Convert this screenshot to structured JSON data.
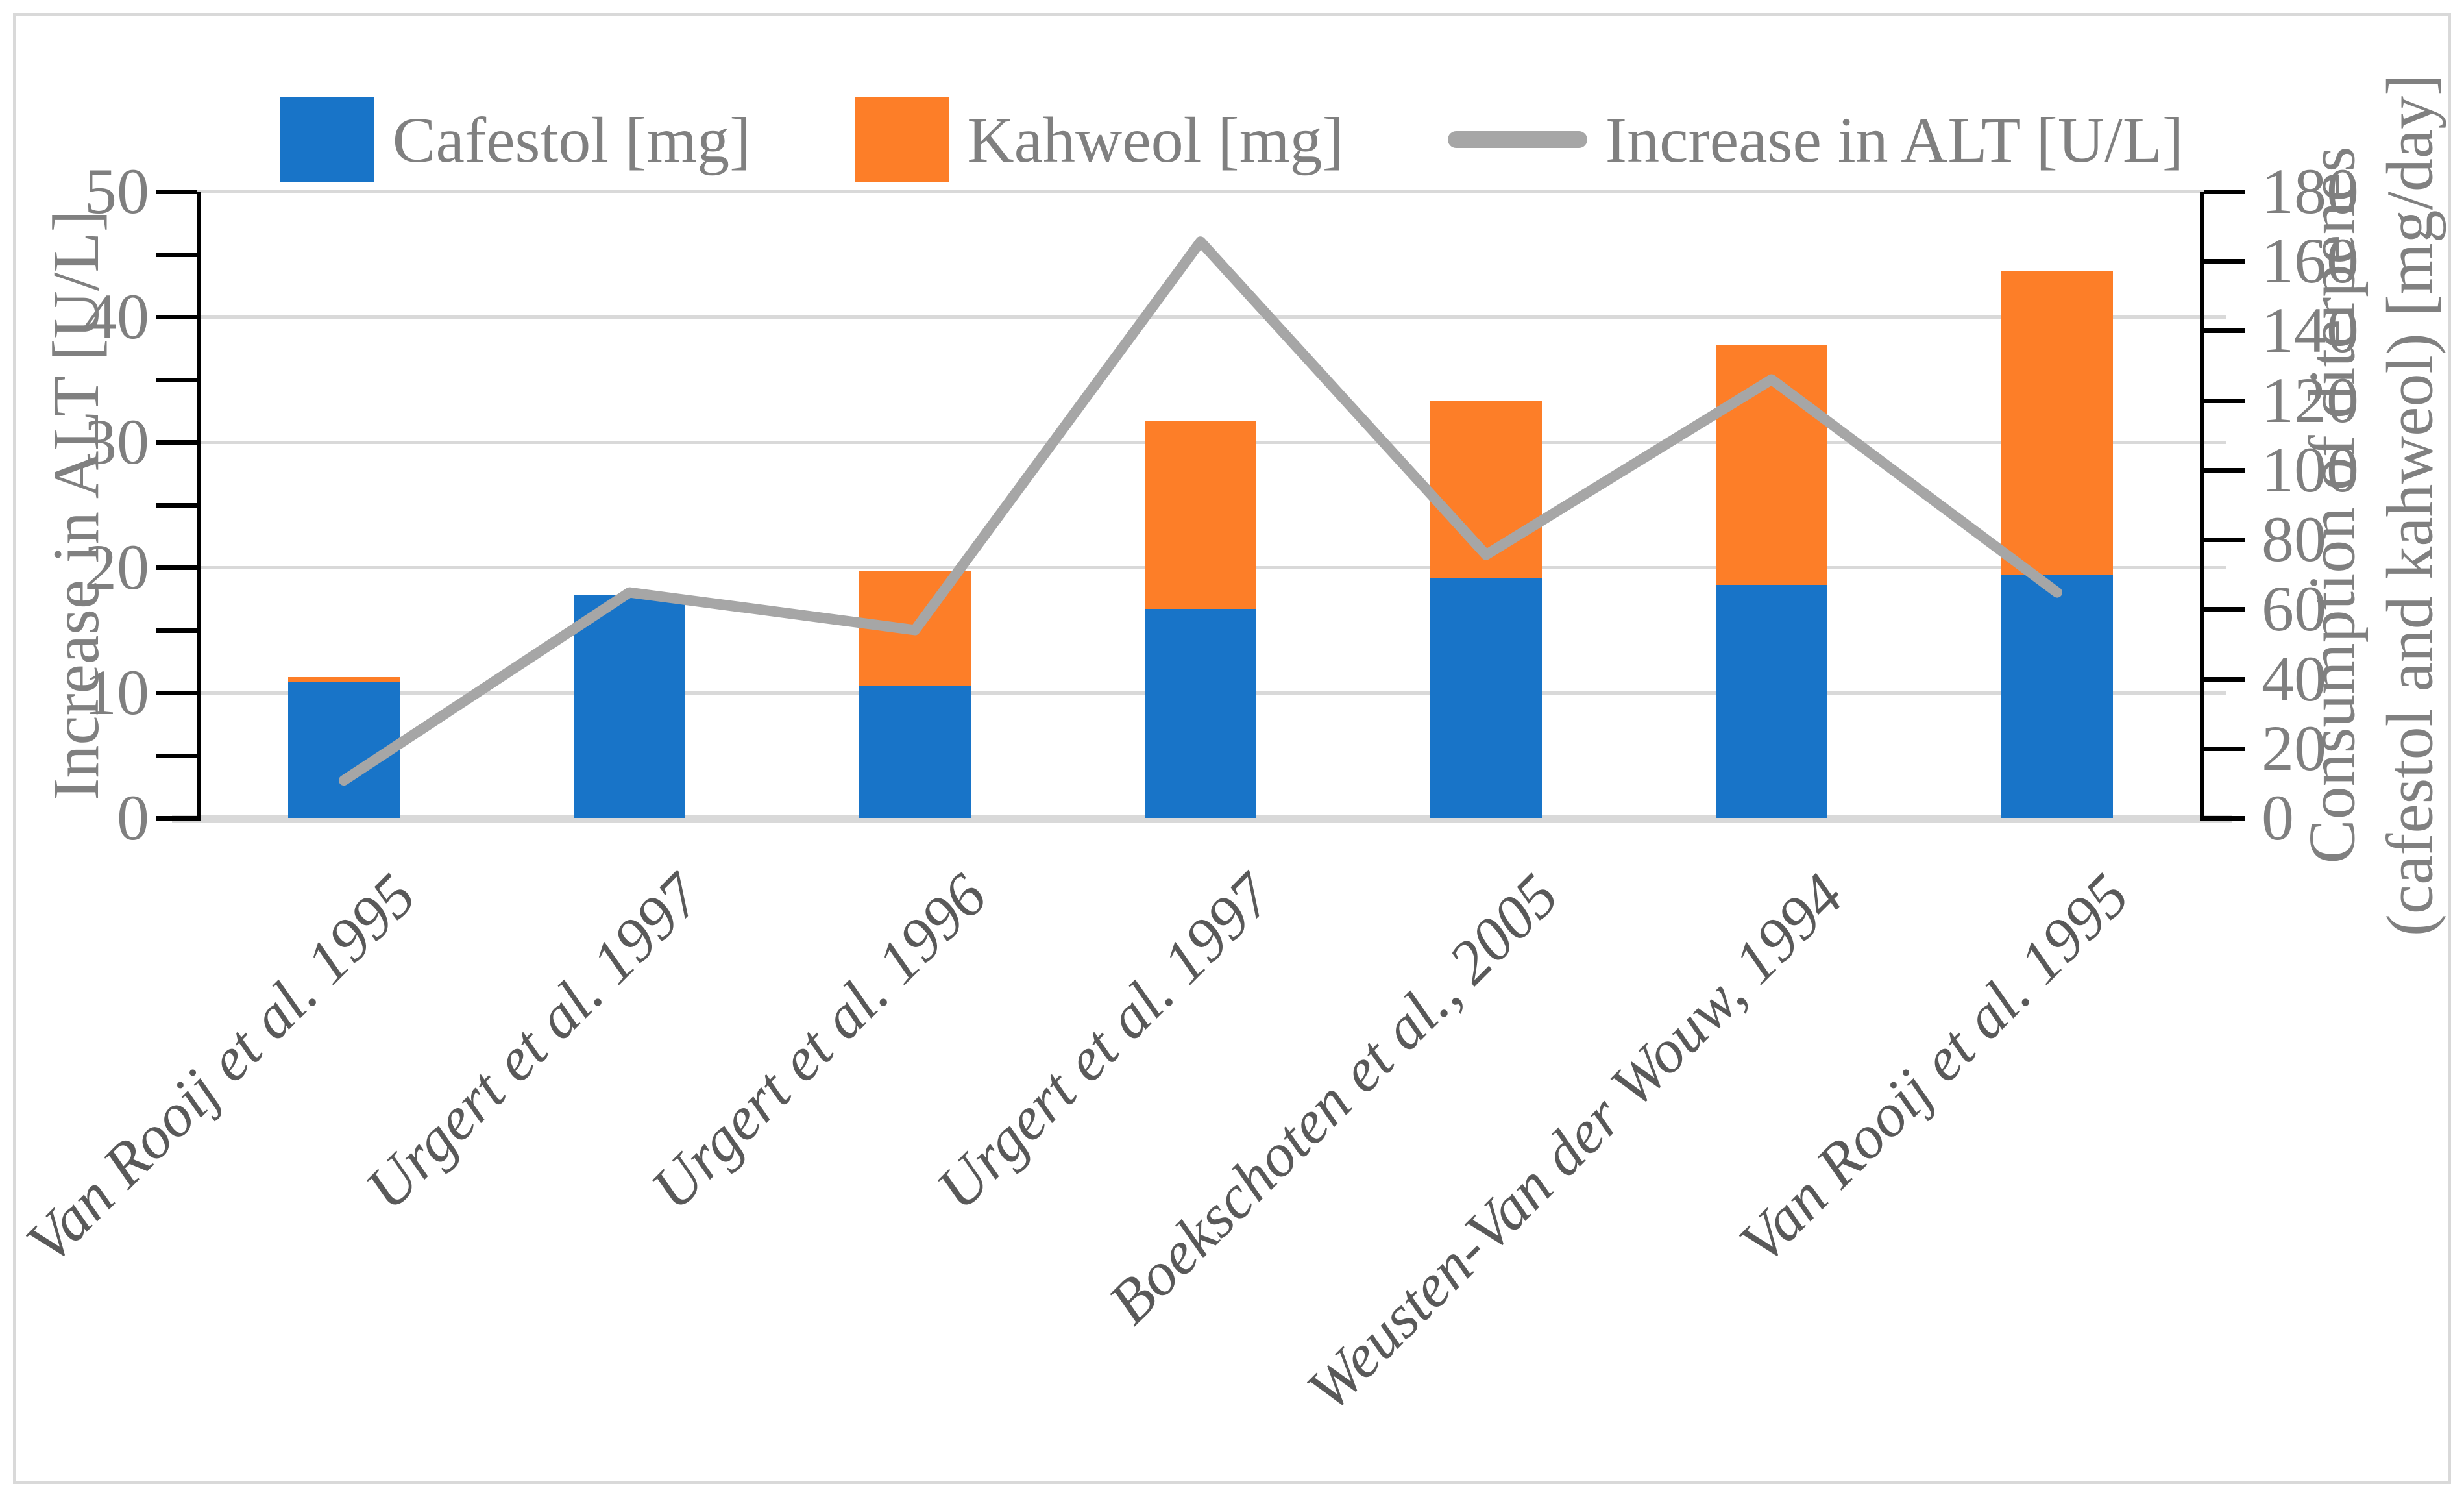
{
  "chart_data": {
    "type": "combo-stacked-bar-line",
    "categories": [
      "Van Rooij et al. 1995",
      "Urgert et al. 1997",
      "Urgert et al. 1996",
      "Urgert et al. 1997",
      "Boekschoten et al., 2005",
      "Weusten-Van der Wouw, 1994",
      "Van Rooij et al. 1995"
    ],
    "series": [
      {
        "name": "Cafestol [mg]",
        "type": "bar",
        "axis": "right",
        "color": "#1874C8",
        "values": [
          39,
          64,
          38,
          60,
          69,
          67,
          70
        ]
      },
      {
        "name": "Kahweol [mg]",
        "type": "bar",
        "axis": "right",
        "color": "#FD7E28",
        "values": [
          1.5,
          0,
          33,
          54,
          51,
          69,
          87
        ]
      },
      {
        "name": "Increase in ALT [U/L]",
        "type": "line",
        "axis": "left",
        "color": "#A6A6A6",
        "values": [
          3,
          18,
          15,
          46,
          21,
          35,
          18
        ]
      }
    ],
    "left_axis": {
      "title": "Increase in ALT [U/L]",
      "min": 0,
      "max": 50,
      "step": 10,
      "minor_step": 5,
      "ticks": [
        "0",
        "10",
        "20",
        "30",
        "40",
        "50"
      ]
    },
    "right_axis": {
      "title_line1": "Consumption of diterpenes",
      "title_line2": "(cafestol and kahweol) [mg/day]",
      "min": 0,
      "max": 180,
      "step": 20,
      "ticks": [
        "0",
        "20",
        "40",
        "60",
        "80",
        "100",
        "120",
        "140",
        "160",
        "180"
      ]
    },
    "legend_position": "top",
    "grid": true,
    "colors": {
      "gridline": "#D9D9D9",
      "axis_line": "#000000",
      "tick_label": "#7F7F7F",
      "category_label": "#595959",
      "legend_text": "#808080",
      "chart_border": "#D9D9D9"
    }
  }
}
